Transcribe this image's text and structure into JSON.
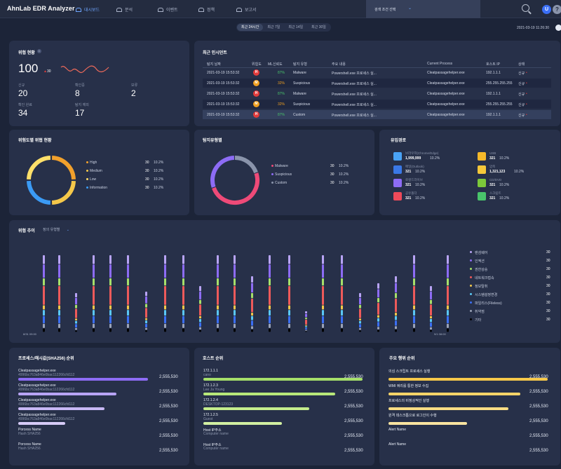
{
  "app": {
    "title": "AhnLab EDR Analyzer"
  },
  "nav": [
    {
      "label": "대시보드"
    },
    {
      "label": "분석"
    },
    {
      "label": "이벤트"
    },
    {
      "label": "정책"
    },
    {
      "label": "보고서"
    }
  ],
  "search": {
    "label": "검색 조건 선택"
  },
  "user": {
    "avatar": "U",
    "help": "?"
  },
  "range": {
    "tabs": [
      "최근 24시간",
      "최근 7일",
      "최근 14일",
      "최근 30일"
    ],
    "active": 0,
    "datetime": "2021-03-19 11:26:30"
  },
  "threat": {
    "title": "위협 현황",
    "info": "i",
    "total": "100",
    "delta": "30",
    "delta_dir": "up",
    "stats": [
      {
        "label": "신규",
        "value": "20"
      },
      {
        "label": "확인중",
        "value": "8"
      },
      {
        "label": "보류",
        "value": "2"
      },
      {
        "label": "확인 완료",
        "value": "34"
      },
      {
        "label": "탐지 예외",
        "value": "17"
      }
    ]
  },
  "recent": {
    "title": "최근 인시던트",
    "headers": [
      "탐지 날짜",
      "위험도",
      "ML신뢰도",
      "탐지 유형",
      "주요 내용",
      "Current Process",
      "호스트 IP",
      "상태"
    ],
    "rows": [
      {
        "date": "2021-03-19 15:53:32",
        "risk": "H",
        "riskColor": "#e23b3b",
        "ml": "87%",
        "mlColor": "#49c46b",
        "type": "Malware",
        "content": "Powershell.exe 프로세스 실...",
        "proc": "Cleatpassagehelper.exe",
        "ip": "192.1.1.1",
        "status": "신규"
      },
      {
        "date": "2021-03-19 15:53:32",
        "risk": "M",
        "riskColor": "#f0a020",
        "ml": "32%",
        "mlColor": "#f0a020",
        "type": "Suspicious",
        "content": "Powershell.exe 프로세스 실...",
        "proc": "Cleatpassagehelper.exe",
        "ip": "255.255.255.255",
        "status": "신규"
      },
      {
        "date": "2021-03-19 15:53:32",
        "risk": "H",
        "riskColor": "#e23b3b",
        "ml": "87%",
        "mlColor": "#49c46b",
        "type": "Malware",
        "content": "Powershell.exe 프로세스 실...",
        "proc": "Cleatpassagehelper.exe",
        "ip": "192.1.1.1",
        "status": "신규"
      },
      {
        "date": "2021-03-19 15:53:32",
        "risk": "M",
        "riskColor": "#f0a020",
        "ml": "32%",
        "mlColor": "#f0a020",
        "type": "Suspicious",
        "content": "Powershell.exe 프로세스 실...",
        "proc": "Cleatpassagehelper.exe",
        "ip": "255.255.255.255",
        "status": "신규"
      },
      {
        "date": "2021-03-19 15:53:32",
        "risk": "H",
        "riskColor": "#e23b3b",
        "ml": "87%",
        "mlColor": "#49c46b",
        "type": "Custom",
        "content": "Powershell.exe 프로세스 실...",
        "proc": "Cleatpassagehelper.exe",
        "ip": "192.1.1.1",
        "status": "신규"
      }
    ]
  },
  "risk_panel": {
    "title": "위험도별 위협 현황",
    "items": [
      {
        "label": "High",
        "count": "30",
        "pct": "10.2%",
        "color": "#f2a12c"
      },
      {
        "label": "Medium",
        "count": "30",
        "pct": "10.2%",
        "color": "#f5c84a"
      },
      {
        "label": "Low",
        "count": "30",
        "pct": "10.2%",
        "color": "#ffe06a"
      },
      {
        "label": "Information",
        "count": "30",
        "pct": "10.2%",
        "color": "#3b9bf5"
      }
    ]
  },
  "detect_panel": {
    "title": "탐지유형별",
    "items": [
      {
        "label": "Malware",
        "count": "30",
        "pct": "10.2%",
        "color": "#ee4a78"
      },
      {
        "label": "Suspicious",
        "count": "30",
        "pct": "10.2%",
        "color": "#8d6cf5"
      },
      {
        "label": "Custom",
        "count": "30",
        "pct": "10.2%",
        "color": "#8a94ab"
      }
    ]
  },
  "inflow": {
    "title": "유입경로",
    "items": [
      {
        "label": "브라우저(Chrome/Edge)",
        "value": "1,999,999",
        "pct": "10.2%",
        "color": "#4aa3f5",
        "icon": "browser-icon"
      },
      {
        "label": "USB",
        "value": "321",
        "pct": "10.2%",
        "color": "#f5b82a",
        "icon": "usb-icon"
      },
      {
        "label": "메일(Outlook)",
        "value": "321",
        "pct": "10.2%",
        "color": "#3a78e6",
        "icon": "mail-icon"
      },
      {
        "label": "압축",
        "value": "1,321,123",
        "pct": "10.2%",
        "color": "#f5c83a",
        "icon": "archive-icon"
      },
      {
        "label": "로컬드라이브",
        "value": "321",
        "pct": "10.2%",
        "color": "#8d6cf5",
        "icon": "drive-icon"
      },
      {
        "label": "CD/DVD",
        "value": "321",
        "pct": "10.2%",
        "color": "#7cc83a",
        "icon": "cd-icon"
      },
      {
        "label": "공유폴더",
        "value": "321",
        "pct": "10.2%",
        "color": "#ee4a5a",
        "icon": "folder-icon"
      },
      {
        "label": "스크립트",
        "value": "321",
        "pct": "10.2%",
        "color": "#49c46b",
        "icon": "script-icon"
      }
    ]
  },
  "trend": {
    "title": "위협 추이",
    "select": "정의 유형별",
    "x_start": "8/31 09:00",
    "x_end": "9/1 08:00",
    "legend": [
      {
        "label": "랜섬웨어",
        "count": "30",
        "color": "#b8a4f5"
      },
      {
        "label": "인젝션",
        "count": "30",
        "color": "#8d6cf5"
      },
      {
        "label": "권한상승",
        "count": "30",
        "color": "#a6e06a"
      },
      {
        "label": "네트워크접속",
        "count": "30",
        "color": "#ee5a5a"
      },
      {
        "label": "정보탈취",
        "count": "30",
        "color": "#f5c84a"
      },
      {
        "label": "시스템설정변경",
        "count": "30",
        "color": "#5ac8f5"
      },
      {
        "label": "파일리스(Fileless)",
        "count": "30",
        "color": "#3b6ff5"
      },
      {
        "label": "취약점",
        "count": "30",
        "color": "#9aa3b8"
      },
      {
        "label": "기타",
        "count": "30",
        "color": "#000000"
      }
    ]
  },
  "proc_rank": {
    "title": "프로세스/해시값(SHA256) 순위",
    "items": [
      {
        "name": "Cleatpassagehelper.exe",
        "hash": "4996bc763a846e0bac112266cfd112",
        "value": "2,555,530",
        "ratio": 0.66,
        "color": "#8d6cf5"
      },
      {
        "name": "Cleatpassagehelper.exe",
        "hash": "4996bc763a846e0bac112266cfd112",
        "value": "2,555,530",
        "ratio": 0.5,
        "color": "#b8a4f5"
      },
      {
        "name": "Cleatpassagehelper.exe",
        "hash": "4996bc763a846e0bac112266cfd112",
        "value": "2,555,530",
        "ratio": 0.44,
        "color": "#c8b8f5"
      },
      {
        "name": "Cleatpassagehelper.exe",
        "hash": "4996bc763a846e0bac112266cfd112",
        "value": "2,555,530",
        "ratio": 0.24,
        "color": "#d6cbf7"
      },
      {
        "name": "Porcess Name",
        "hash": "Hash SHA256",
        "value": "2,555,530",
        "ratio": 0,
        "color": "#d6cbf7"
      },
      {
        "name": "Porcess Name",
        "hash": "Hash SHA256",
        "value": "2,555,530",
        "ratio": 0,
        "color": "#d6cbf7"
      }
    ]
  },
  "host_rank": {
    "title": "호스트 순위",
    "items": [
      {
        "name": "172.1.1.1",
        "sub": "cano",
        "value": "2,555,530",
        "ratio": 0.81,
        "color": "#a6e06a"
      },
      {
        "name": "172.1.2.3",
        "sub": "Lee Ja Young",
        "value": "2,555,530",
        "ratio": 0.67,
        "color": "#b8e87a"
      },
      {
        "name": "172.1.2.4",
        "sub": "DESKTOP-123123",
        "value": "2,555,530",
        "ratio": 0.54,
        "color": "#c4ec8c"
      },
      {
        "name": "172.1.2.5",
        "sub": "Guest",
        "value": "2,555,530",
        "ratio": 0.4,
        "color": "#d2f0a2"
      },
      {
        "name": "Host IP주소",
        "sub": "Computer name",
        "value": "2,555,530",
        "ratio": 0,
        "color": "#d2f0a2"
      },
      {
        "name": "Host IP주소",
        "sub": "Computer name",
        "value": "2,555,530",
        "ratio": 0,
        "color": "#d2f0a2"
      }
    ]
  },
  "behav_rank": {
    "title": "주요 행위 순위",
    "items": [
      {
        "name": "의심 스크립트 프로세스 실행",
        "value": "2,555,530",
        "ratio": 0.81,
        "color": "#f5c84a"
      },
      {
        "name": "WMI 쿼리를 통한 정보 수집",
        "value": "2,555,530",
        "ratio": 0.67,
        "color": "#f7d468"
      },
      {
        "name": "프로세스의 비정상적인 실행",
        "value": "2,555,530",
        "ratio": 0.61,
        "color": "#f8dc84"
      },
      {
        "name": "원격 데스크톱으로 로그인이 수행",
        "value": "2,555,530",
        "ratio": 0.4,
        "color": "#fae4a0"
      },
      {
        "name": "Alert Name",
        "value": "2,555,530",
        "ratio": 0,
        "color": "#fae4a0"
      },
      {
        "name": "Alert Name",
        "value": "2,555,530",
        "ratio": 0,
        "color": "#fae4a0"
      }
    ]
  }
}
